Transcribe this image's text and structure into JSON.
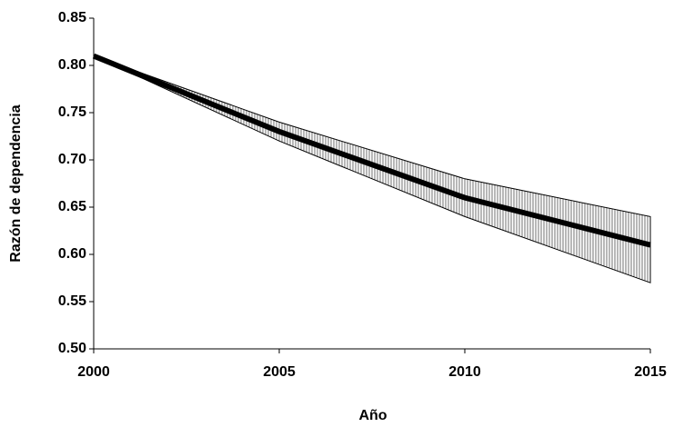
{
  "chart_data": {
    "type": "line",
    "x_label": "Año",
    "y_label": "Razón de dependencia",
    "x": [
      2000,
      2005,
      2010,
      2015
    ],
    "series": [
      {
        "color": "#000000",
        "values": [
          0.81,
          0.73,
          0.66,
          0.61
        ]
      }
    ],
    "band": {
      "color": "#707070",
      "upper": [
        0.81,
        0.74,
        0.68,
        0.64
      ],
      "lower": [
        0.81,
        0.72,
        0.64,
        0.57
      ]
    },
    "xlim": [
      2000,
      2015
    ],
    "xticks": [
      2000,
      2005,
      2010,
      2015
    ],
    "ylim": [
      0.5,
      0.85
    ],
    "yticks": [
      {
        "value": 0.5,
        "label": "0.50"
      },
      0.55,
      {
        "value": 0.6,
        "label": "0.60"
      },
      0.65,
      {
        "value": 0.7,
        "label": "0.70"
      },
      0.75,
      {
        "value": 0.8,
        "label": "0.80"
      },
      0.85
    ],
    "grid": false
  }
}
